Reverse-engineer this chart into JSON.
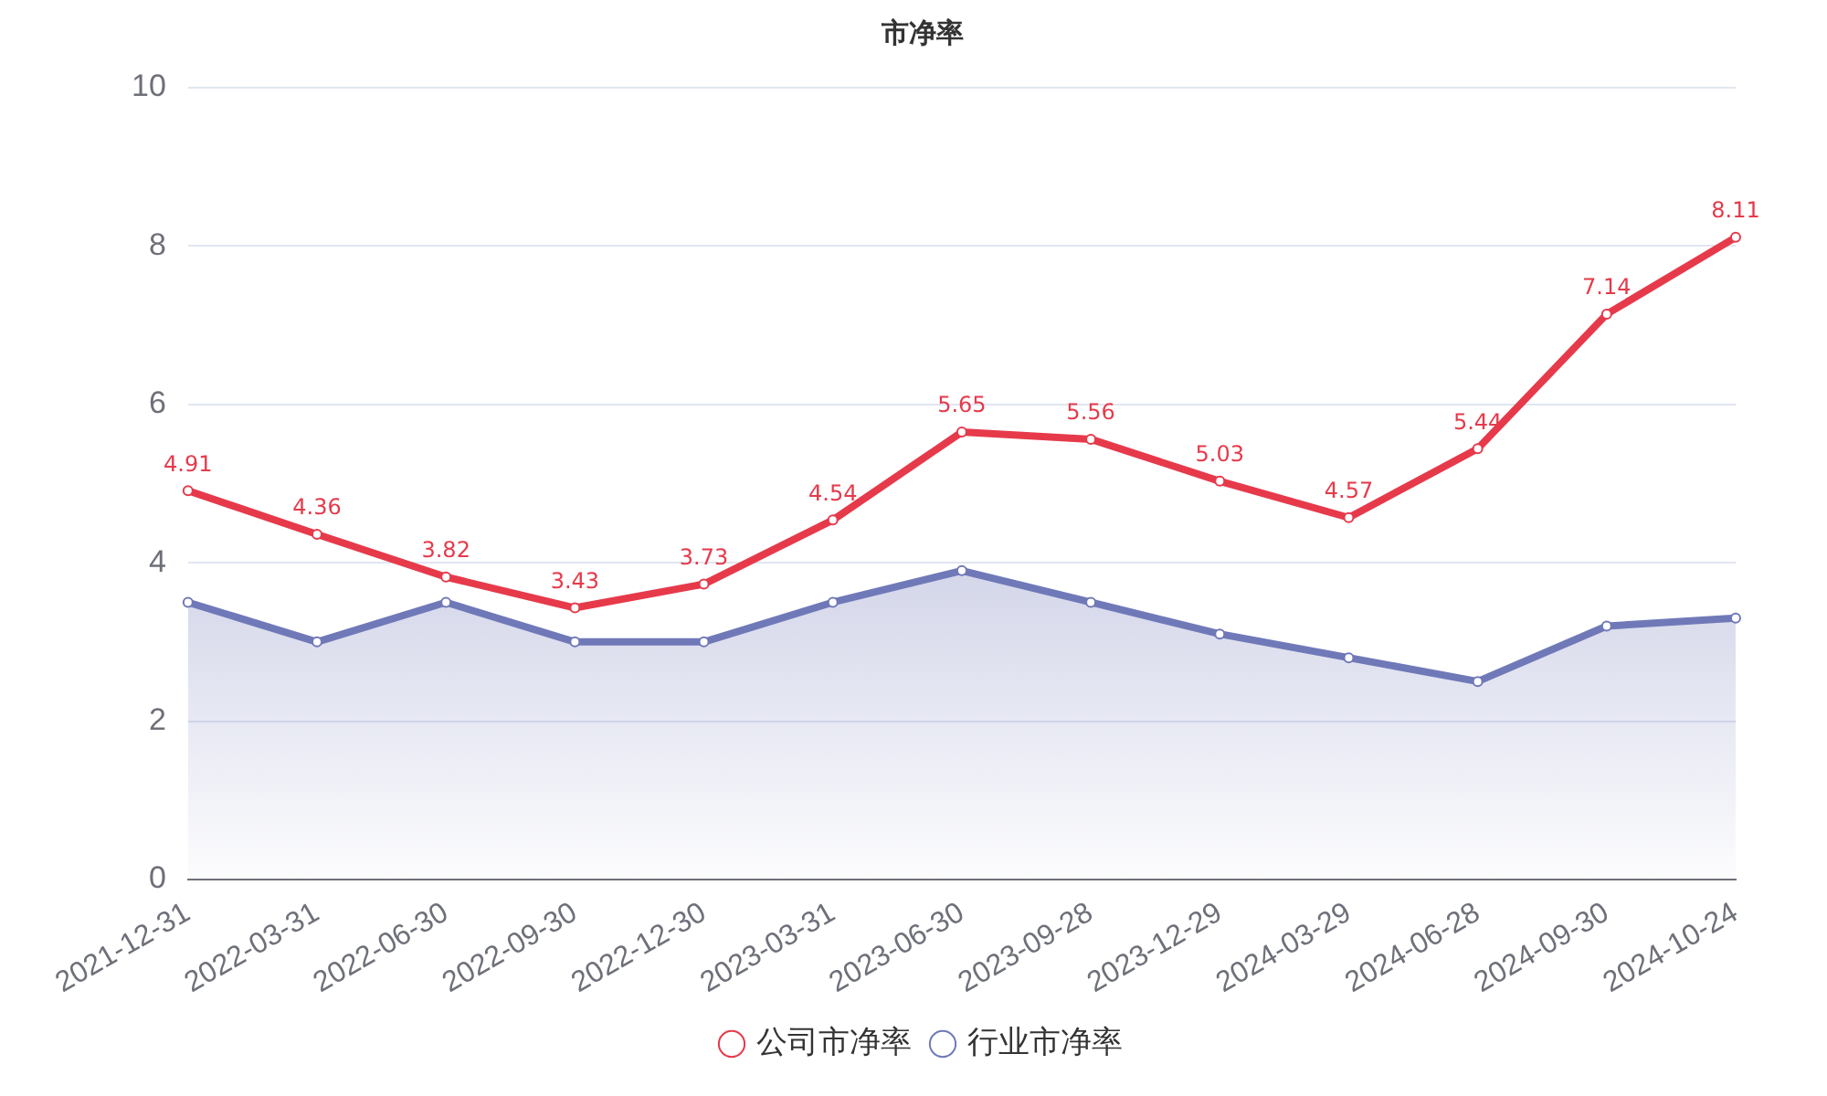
{
  "chart_data": {
    "type": "line",
    "title": "市净率",
    "categories": [
      "2021-12-31",
      "2022-03-31",
      "2022-06-30",
      "2022-09-30",
      "2022-12-30",
      "2023-03-31",
      "2023-06-30",
      "2023-09-28",
      "2023-12-29",
      "2024-03-29",
      "2024-06-28",
      "2024-09-30",
      "2024-10-24"
    ],
    "series": [
      {
        "name": "公司市净率",
        "type": "line",
        "color": "#e63a4b",
        "values": [
          4.91,
          4.36,
          3.82,
          3.43,
          3.73,
          4.54,
          5.65,
          5.56,
          5.03,
          4.57,
          5.44,
          7.14,
          8.11
        ],
        "value_labels": [
          "4.91",
          "4.36",
          "3.82",
          "3.43",
          "3.73",
          "4.54",
          "5.65",
          "5.56",
          "5.03",
          "4.57",
          "5.44",
          "7.14",
          "8.11"
        ]
      },
      {
        "name": "行业市净率",
        "type": "area",
        "color": "#7079b8",
        "values": [
          3.5,
          3.0,
          3.5,
          3.0,
          3.0,
          3.5,
          3.9,
          3.5,
          3.1,
          2.8,
          2.5,
          3.2,
          3.3
        ]
      }
    ],
    "ylim": [
      0,
      10
    ],
    "yticks": [
      0,
      2,
      4,
      6,
      8,
      10
    ],
    "grid": "y",
    "legend": "bottom",
    "marker": "circle",
    "line_style": "solid"
  }
}
